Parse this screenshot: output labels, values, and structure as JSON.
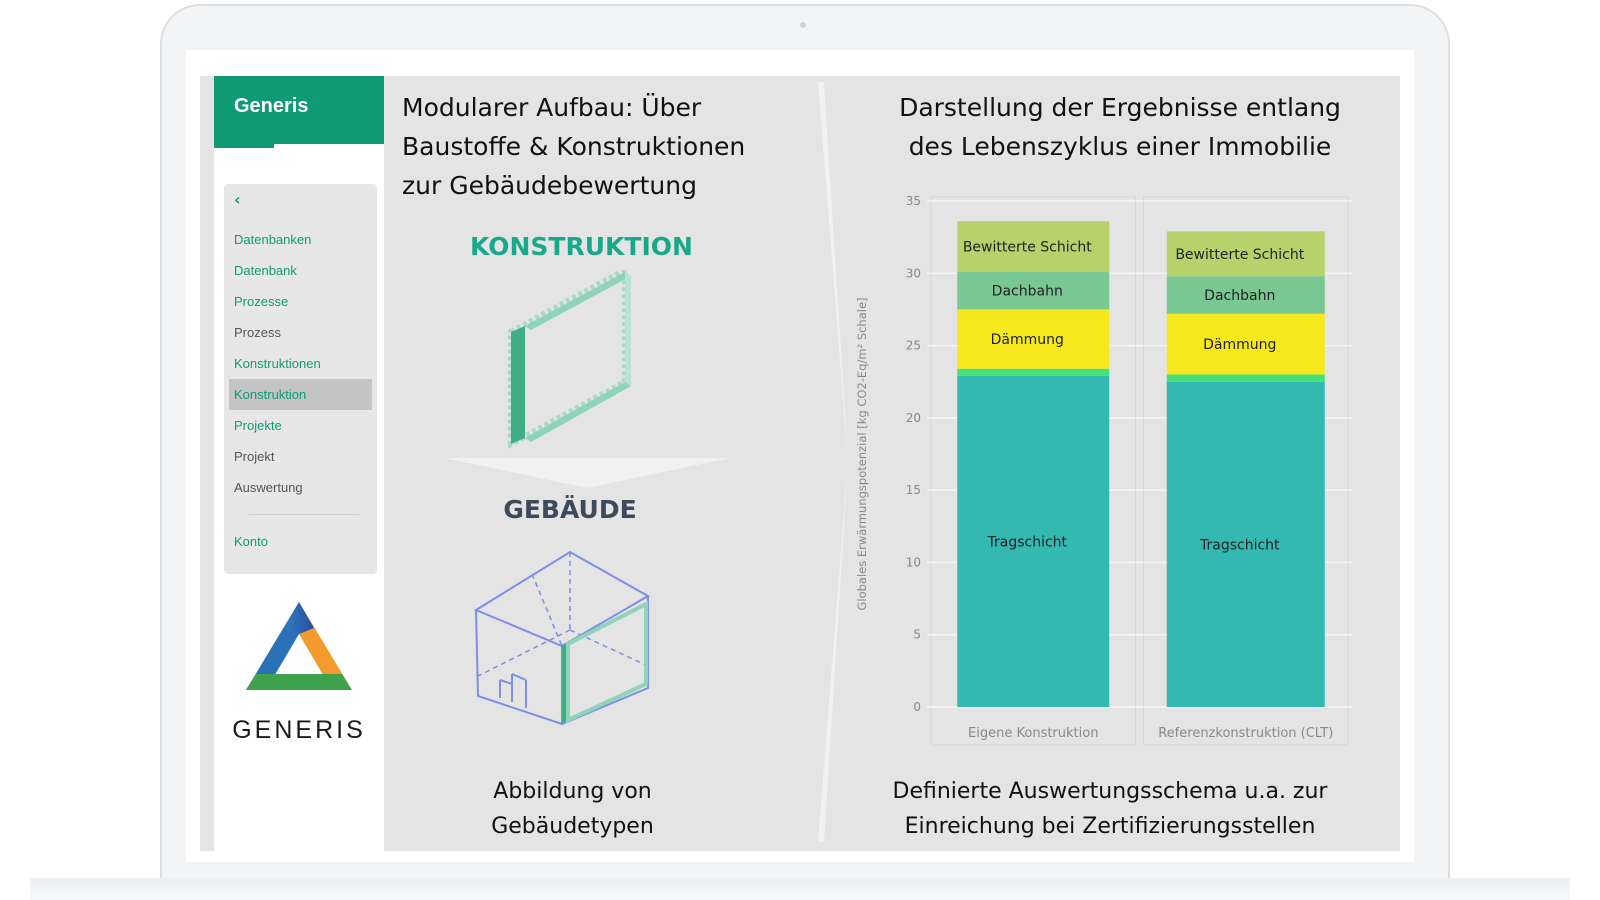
{
  "app": {
    "brand": "Generis",
    "logo_text": "GENERIS"
  },
  "sidebar": {
    "back_symbol": "‹",
    "items": [
      {
        "label": "Datenbanken",
        "state": "link"
      },
      {
        "label": "Datenbank",
        "state": "link"
      },
      {
        "label": "Prozesse",
        "state": "link"
      },
      {
        "label": "Prozess",
        "state": "muted"
      },
      {
        "label": "Konstruktionen",
        "state": "link"
      },
      {
        "label": "Konstruktion",
        "state": "active"
      },
      {
        "label": "Projekte",
        "state": "link"
      },
      {
        "label": "Projekt",
        "state": "muted"
      },
      {
        "label": "Auswertung",
        "state": "muted"
      }
    ],
    "account": "Konto"
  },
  "middle": {
    "title_lines": [
      "Modularer Aufbau: Über",
      "Baustoffe & Konstruktionen",
      "zur Gebäudebewertung"
    ],
    "konstruktion": "KONSTRUKTION",
    "gebaeude": "GEBÄUDE",
    "caption_lines": [
      "Abbildung von",
      "Gebäudetypen"
    ]
  },
  "right": {
    "title_lines": [
      "Darstellung der Ergebnisse entlang",
      "des Lebenszyklus einer Immobilie"
    ],
    "caption_lines": [
      "Definierte  Auswertungsschema  u.a. zur",
      "Einreichung  bei Zertifizierungsstellen"
    ]
  },
  "colors": {
    "brand": "#0f9a76",
    "tragschicht": "#33b8b2",
    "sperre": "#46e07a",
    "daemmung": "#f5e81c",
    "dachbahn": "#79c792",
    "bewitterte": "#b6d36b"
  },
  "icons": [
    "chevron-left-icon",
    "generis-logo-icon",
    "wall-construction-icon",
    "arrow-down-icon",
    "house-wireframe-icon"
  ],
  "chart_data": {
    "type": "bar",
    "stacked": true,
    "categories": [
      "Eigene Konstruktion",
      "Referenzkonstruktion (CLT)"
    ],
    "series": [
      {
        "name": "Tragschicht",
        "values": [
          22.9,
          22.5
        ]
      },
      {
        "name": "",
        "values": [
          0.5,
          0.5
        ]
      },
      {
        "name": "Dämmung",
        "values": [
          4.1,
          4.2
        ]
      },
      {
        "name": "Dachbahn",
        "values": [
          2.6,
          2.6
        ]
      },
      {
        "name": "Bewitterte Schicht",
        "values": [
          3.5,
          3.1
        ]
      }
    ],
    "ylabel": "Globales Erwärmungspotenzial [kg CO2-Eq/m² Schale]",
    "ylim": [
      0,
      35
    ],
    "yticks": [
      0,
      5,
      10,
      15,
      20,
      25,
      30,
      35
    ],
    "grid": true,
    "legend": "none"
  }
}
